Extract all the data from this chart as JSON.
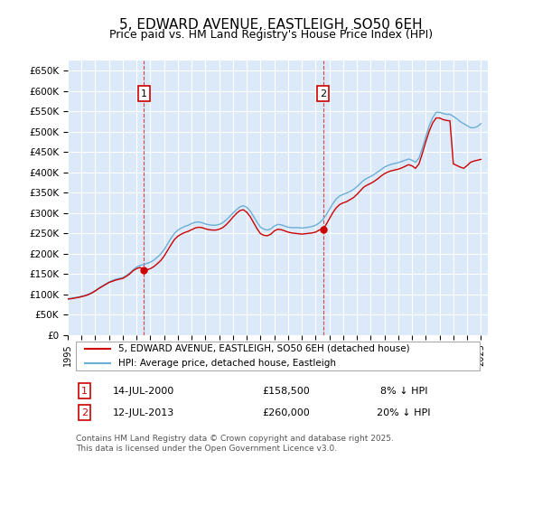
{
  "title": "5, EDWARD AVENUE, EASTLEIGH, SO50 6EH",
  "subtitle": "Price paid vs. HM Land Registry's House Price Index (HPI)",
  "title_fontsize": 11,
  "subtitle_fontsize": 9,
  "xlabel": "",
  "ylabel": "",
  "ylim": [
    0,
    675000
  ],
  "yticks": [
    0,
    50000,
    100000,
    150000,
    200000,
    250000,
    300000,
    350000,
    400000,
    450000,
    500000,
    550000,
    600000,
    650000
  ],
  "ytick_labels": [
    "£0",
    "£50K",
    "£100K",
    "£150K",
    "£200K",
    "£250K",
    "£300K",
    "£350K",
    "£400K",
    "£450K",
    "£500K",
    "£550K",
    "£600K",
    "£650K"
  ],
  "xlim_start": 1995.0,
  "xlim_end": 2025.5,
  "background_color": "#ffffff",
  "plot_bg_color": "#dce9f8",
  "grid_color": "#ffffff",
  "hpi_line_color": "#6baed6",
  "price_line_color": "#cc0000",
  "sale1_x": 2000.535,
  "sale1_y": 158500,
  "sale1_label": "1",
  "sale1_date": "14-JUL-2000",
  "sale1_price": "£158,500",
  "sale1_note": "8% ↓ HPI",
  "sale2_x": 2013.535,
  "sale2_y": 260000,
  "sale2_label": "2",
  "sale2_date": "12-JUL-2013",
  "sale2_price": "£260,000",
  "sale2_note": "20% ↓ HPI",
  "vline1_x": 2000.535,
  "vline2_x": 2013.535,
  "legend_label_price": "5, EDWARD AVENUE, EASTLEIGH, SO50 6EH (detached house)",
  "legend_label_hpi": "HPI: Average price, detached house, Eastleigh",
  "footnote": "Contains HM Land Registry data © Crown copyright and database right 2025.\nThis data is licensed under the Open Government Licence v3.0.",
  "footnote_fontsize": 6.5,
  "hpi_data_x": [
    1995.0,
    1995.25,
    1995.5,
    1995.75,
    1996.0,
    1996.25,
    1996.5,
    1996.75,
    1997.0,
    1997.25,
    1997.5,
    1997.75,
    1998.0,
    1998.25,
    1998.5,
    1998.75,
    1999.0,
    1999.25,
    1999.5,
    1999.75,
    2000.0,
    2000.25,
    2000.5,
    2000.75,
    2001.0,
    2001.25,
    2001.5,
    2001.75,
    2002.0,
    2002.25,
    2002.5,
    2002.75,
    2003.0,
    2003.25,
    2003.5,
    2003.75,
    2004.0,
    2004.25,
    2004.5,
    2004.75,
    2005.0,
    2005.25,
    2005.5,
    2005.75,
    2006.0,
    2006.25,
    2006.5,
    2006.75,
    2007.0,
    2007.25,
    2007.5,
    2007.75,
    2008.0,
    2008.25,
    2008.5,
    2008.75,
    2009.0,
    2009.25,
    2009.5,
    2009.75,
    2010.0,
    2010.25,
    2010.5,
    2010.75,
    2011.0,
    2011.25,
    2011.5,
    2011.75,
    2012.0,
    2012.25,
    2012.5,
    2012.75,
    2013.0,
    2013.25,
    2013.5,
    2013.75,
    2014.0,
    2014.25,
    2014.5,
    2014.75,
    2015.0,
    2015.25,
    2015.5,
    2015.75,
    2016.0,
    2016.25,
    2016.5,
    2016.75,
    2017.0,
    2017.25,
    2017.5,
    2017.75,
    2018.0,
    2018.25,
    2018.5,
    2018.75,
    2019.0,
    2019.25,
    2019.5,
    2019.75,
    2020.0,
    2020.25,
    2020.5,
    2020.75,
    2021.0,
    2021.25,
    2021.5,
    2021.75,
    2022.0,
    2022.25,
    2022.5,
    2022.75,
    2023.0,
    2023.25,
    2023.5,
    2023.75,
    2024.0,
    2024.25,
    2024.5,
    2024.75,
    2025.0
  ],
  "hpi_data_y": [
    89000,
    90000,
    91500,
    93000,
    95000,
    97000,
    100000,
    104000,
    109000,
    115000,
    120000,
    125000,
    130000,
    134000,
    137000,
    139000,
    141000,
    146000,
    152000,
    160000,
    167000,
    171000,
    173000,
    176000,
    179000,
    184000,
    191000,
    199000,
    210000,
    224000,
    238000,
    250000,
    258000,
    263000,
    267000,
    270000,
    274000,
    277000,
    278000,
    276000,
    273000,
    271000,
    270000,
    270000,
    272000,
    276000,
    283000,
    291000,
    300000,
    308000,
    315000,
    318000,
    314000,
    305000,
    291000,
    277000,
    265000,
    260000,
    258000,
    261000,
    268000,
    272000,
    271000,
    268000,
    265000,
    264000,
    264000,
    264000,
    263000,
    264000,
    265000,
    267000,
    270000,
    275000,
    283000,
    295000,
    309000,
    323000,
    335000,
    342000,
    346000,
    349000,
    353000,
    358000,
    365000,
    373000,
    381000,
    386000,
    390000,
    395000,
    401000,
    407000,
    413000,
    417000,
    420000,
    422000,
    424000,
    427000,
    430000,
    433000,
    430000,
    425000,
    435000,
    460000,
    488000,
    515000,
    535000,
    548000,
    548000,
    545000,
    543000,
    543000,
    538000,
    532000,
    525000,
    520000,
    515000,
    510000,
    510000,
    513000,
    520000
  ],
  "price_data_x": [
    1995.0,
    1995.25,
    1995.5,
    1995.75,
    1996.0,
    1996.25,
    1996.5,
    1996.75,
    1997.0,
    1997.25,
    1997.5,
    1997.75,
    1998.0,
    1998.25,
    1998.5,
    1998.75,
    1999.0,
    1999.25,
    1999.5,
    1999.75,
    2000.0,
    2000.25,
    2000.535,
    2000.75,
    2001.0,
    2001.25,
    2001.5,
    2001.75,
    2002.0,
    2002.25,
    2002.5,
    2002.75,
    2003.0,
    2003.25,
    2003.5,
    2003.75,
    2004.0,
    2004.25,
    2004.5,
    2004.75,
    2005.0,
    2005.25,
    2005.5,
    2005.75,
    2006.0,
    2006.25,
    2006.5,
    2006.75,
    2007.0,
    2007.25,
    2007.5,
    2007.75,
    2008.0,
    2008.25,
    2008.5,
    2008.75,
    2009.0,
    2009.25,
    2009.5,
    2009.75,
    2010.0,
    2010.25,
    2010.5,
    2010.75,
    2011.0,
    2011.25,
    2011.5,
    2011.75,
    2012.0,
    2012.25,
    2012.5,
    2012.75,
    2013.0,
    2013.25,
    2013.535,
    2013.75,
    2014.0,
    2014.25,
    2014.5,
    2014.75,
    2015.0,
    2015.25,
    2015.5,
    2015.75,
    2016.0,
    2016.25,
    2016.5,
    2016.75,
    2017.0,
    2017.25,
    2017.5,
    2017.75,
    2018.0,
    2018.25,
    2018.5,
    2018.75,
    2019.0,
    2019.25,
    2019.5,
    2019.75,
    2020.0,
    2020.25,
    2020.5,
    2020.75,
    2021.0,
    2021.25,
    2021.5,
    2021.75,
    2022.0,
    2022.25,
    2022.5,
    2022.75,
    2023.0,
    2023.25,
    2023.5,
    2023.75,
    2024.0,
    2024.25,
    2024.5,
    2024.75,
    2025.0
  ],
  "price_data_y": [
    88000,
    89000,
    90500,
    92000,
    94000,
    96000,
    99000,
    103000,
    108000,
    114000,
    119000,
    124000,
    129000,
    132000,
    135000,
    137000,
    139000,
    144000,
    150000,
    158000,
    163000,
    166000,
    158500,
    160000,
    163000,
    168000,
    175000,
    183000,
    194000,
    208000,
    222000,
    235000,
    243000,
    248000,
    252000,
    255000,
    259000,
    263000,
    265000,
    264000,
    261000,
    259000,
    258000,
    258000,
    260000,
    264000,
    271000,
    280000,
    290000,
    299000,
    306000,
    308000,
    302000,
    291000,
    276000,
    261000,
    249000,
    245000,
    244000,
    248000,
    256000,
    260000,
    259000,
    256000,
    253000,
    251000,
    250000,
    249000,
    248000,
    249000,
    250000,
    251000,
    253000,
    258000,
    260000,
    271000,
    286000,
    301000,
    313000,
    321000,
    325000,
    328000,
    333000,
    338000,
    346000,
    355000,
    364000,
    369000,
    373000,
    378000,
    384000,
    391000,
    397000,
    401000,
    404000,
    406000,
    408000,
    411000,
    415000,
    419000,
    416000,
    410000,
    421000,
    447000,
    476000,
    502000,
    522000,
    534000,
    534000,
    530000,
    528000,
    527000,
    421000,
    417000,
    413000,
    410000,
    417000,
    425000,
    428000,
    430000,
    432000
  ]
}
